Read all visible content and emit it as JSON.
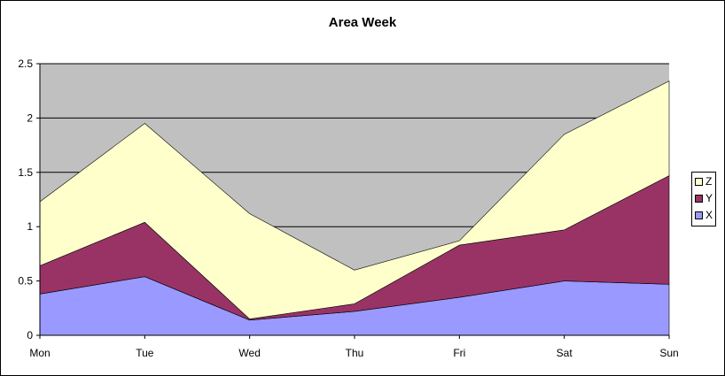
{
  "chart_data": {
    "type": "area",
    "stacked": true,
    "title": "Area Week",
    "categories": [
      "Mon",
      "Tue",
      "Wed",
      "Thu",
      "Fri",
      "Sat",
      "Sun"
    ],
    "series": [
      {
        "name": "X",
        "values": [
          0.38,
          0.54,
          0.14,
          0.22,
          0.35,
          0.5,
          0.47
        ],
        "color": "#9999ff"
      },
      {
        "name": "Y",
        "values": [
          0.26,
          0.5,
          0.01,
          0.07,
          0.48,
          0.47,
          1.0
        ],
        "color": "#993366"
      },
      {
        "name": "Z",
        "values": [
          0.59,
          0.91,
          0.97,
          0.31,
          0.04,
          0.88,
          0.87
        ],
        "color": "#ffffcc"
      }
    ],
    "ylim": [
      0,
      2.5
    ],
    "yticks": [
      "0",
      "0.5",
      "1",
      "1.5",
      "2",
      "2.5"
    ],
    "grid": true,
    "plot_background": "#c0c0c0",
    "legend_position": "right",
    "legend_order": [
      "Z",
      "Y",
      "X"
    ]
  }
}
